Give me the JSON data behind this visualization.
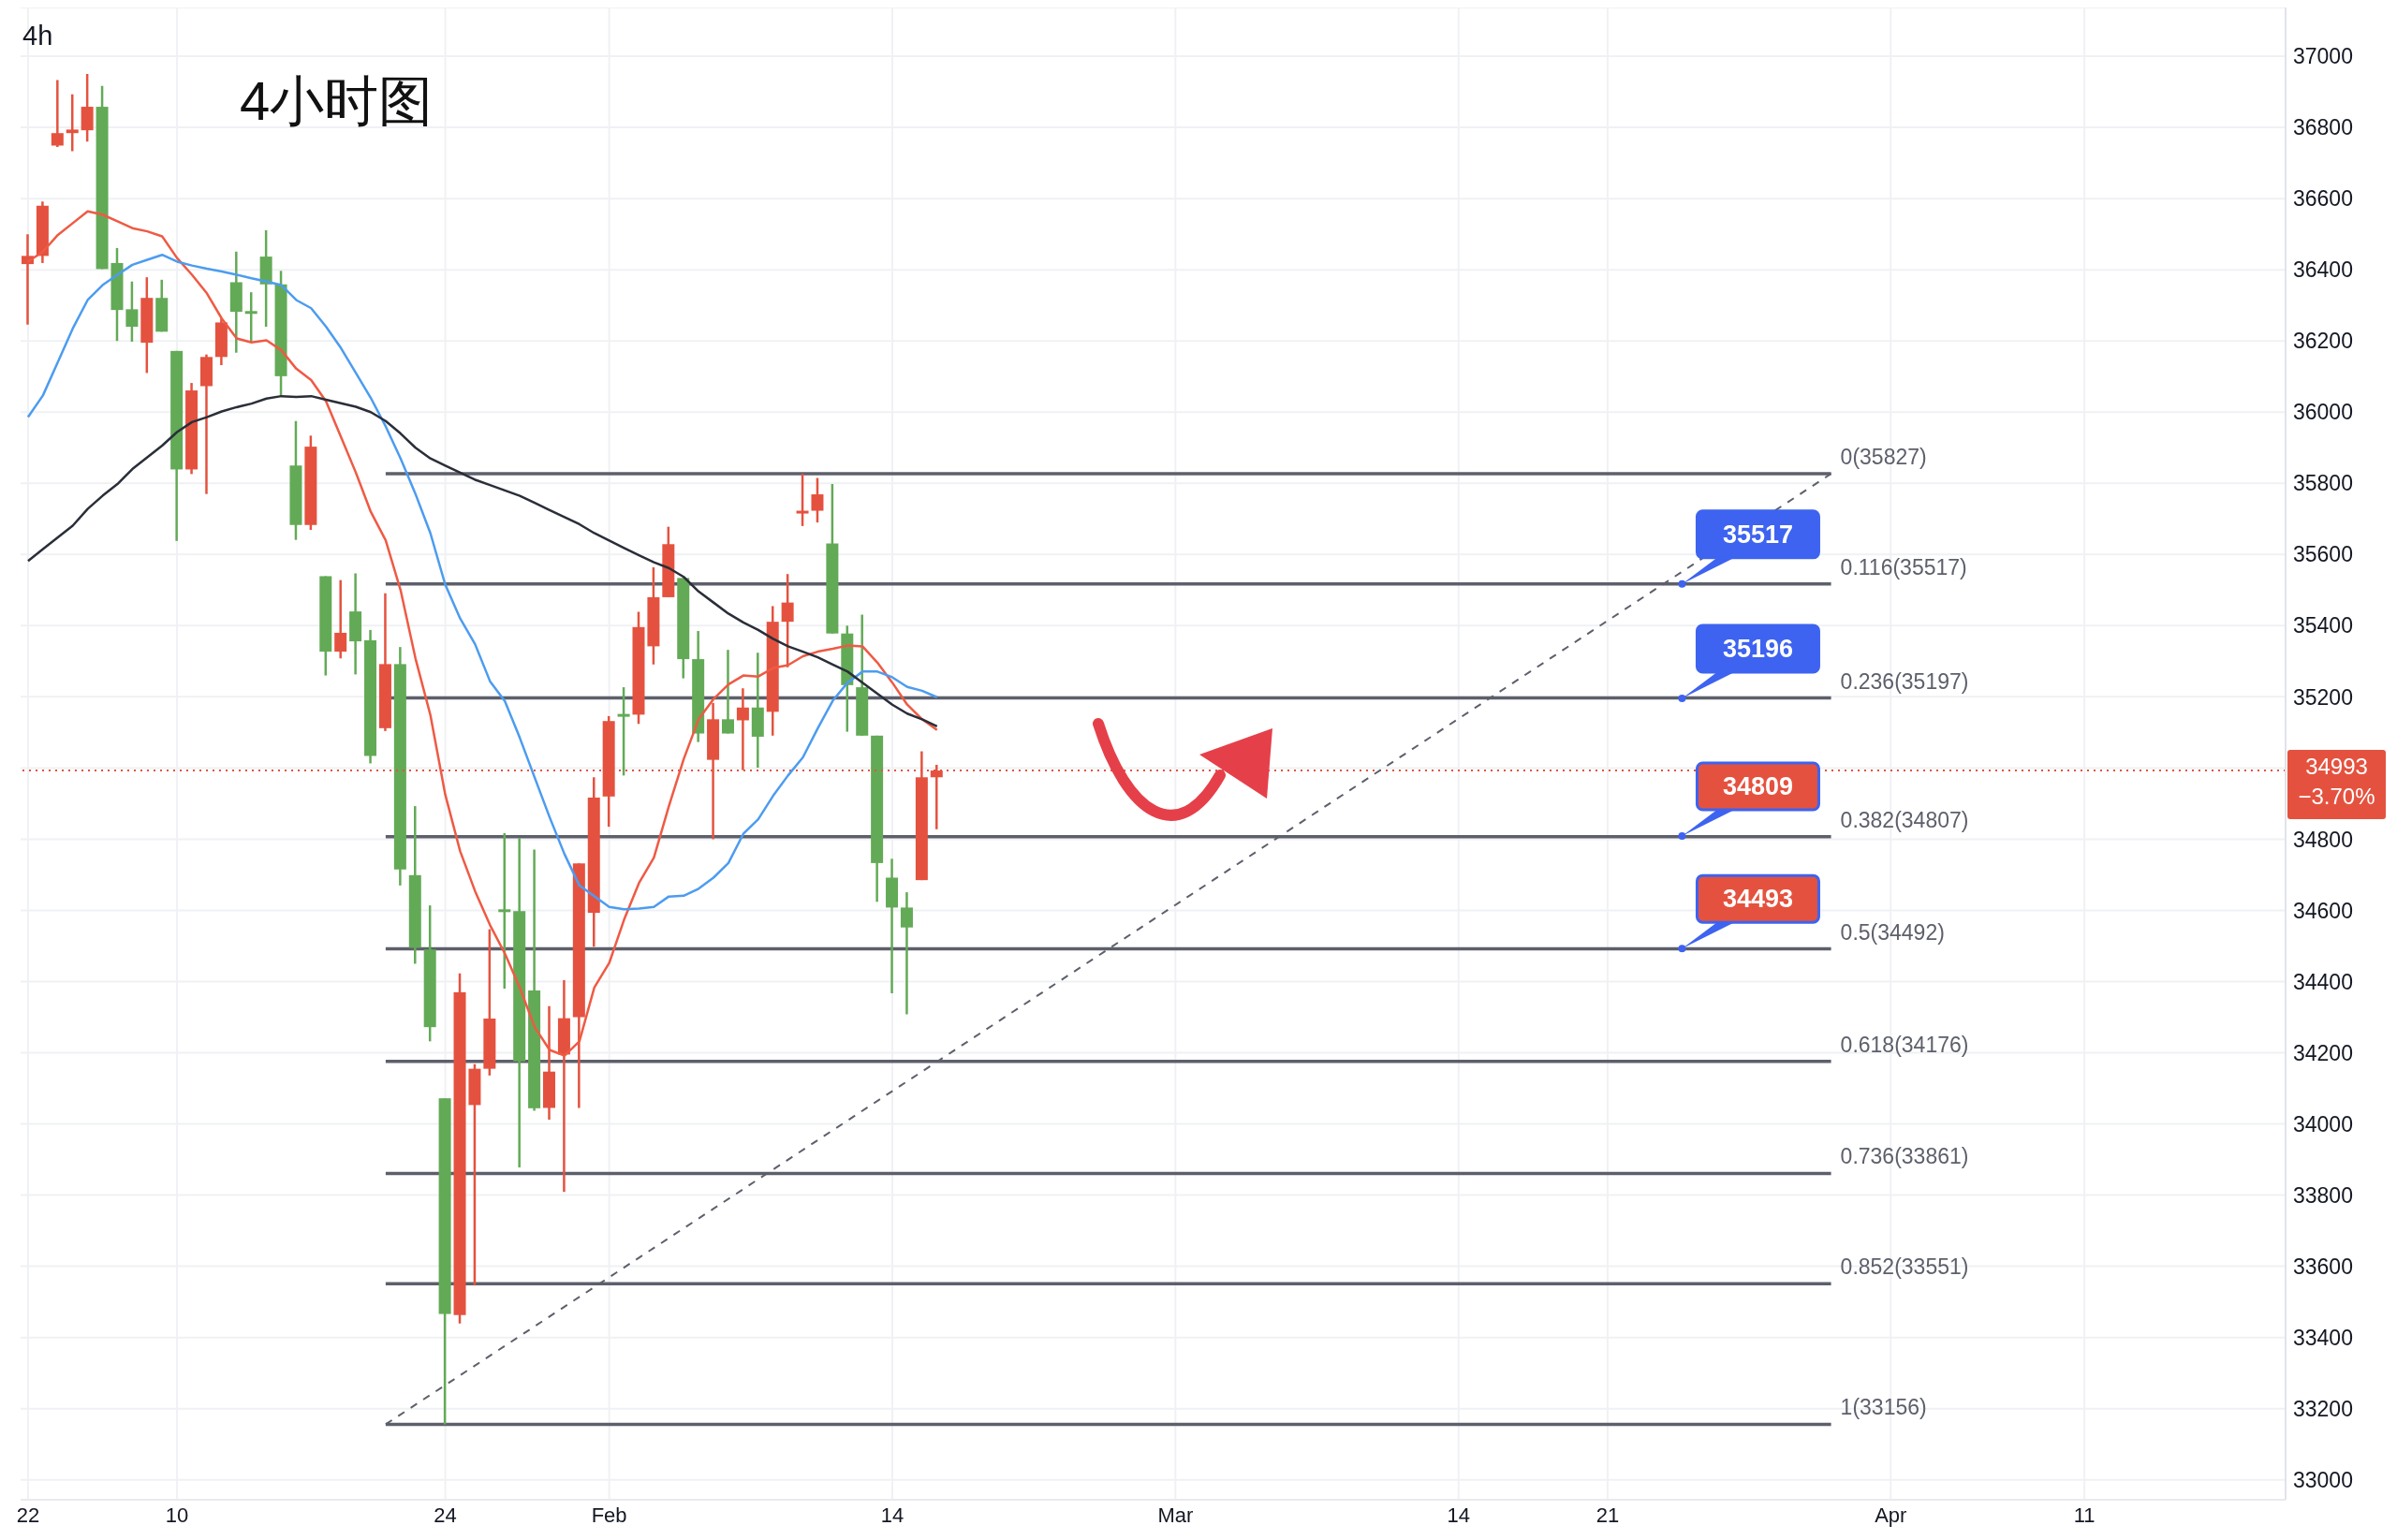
{
  "chart_data": {
    "type": "candlestick",
    "title": "4小时图",
    "subtitle": "4h",
    "categories": [
      "22",
      null,
      null,
      null,
      null,
      null,
      null,
      null,
      null,
      null,
      "10",
      null,
      null,
      null,
      null,
      null,
      null,
      null,
      null,
      null,
      null,
      null,
      null,
      null,
      null,
      null,
      null,
      null,
      "24",
      null,
      null,
      null,
      null,
      null,
      null,
      null,
      null,
      null,
      null,
      "Feb",
      null,
      null,
      null,
      null,
      null,
      null,
      null,
      null,
      null,
      null,
      null,
      null,
      null,
      null,
      null,
      null,
      null,
      null,
      "14",
      null,
      null,
      null,
      null,
      null,
      null,
      null,
      null,
      null,
      null,
      null,
      null,
      null,
      null,
      null,
      null,
      null,
      null,
      "Mar",
      null,
      null,
      null,
      null,
      null,
      null,
      null,
      null,
      null,
      null,
      null,
      null,
      null,
      null,
      null,
      null,
      null,
      null,
      "14",
      null,
      null,
      null,
      null,
      null,
      null,
      null,
      null,
      null,
      "21",
      null,
      null,
      null,
      null,
      null,
      null,
      null,
      null,
      null,
      null,
      null,
      null,
      null,
      null,
      null,
      null,
      null,
      null,
      "Apr",
      null,
      null,
      null,
      null,
      null,
      null,
      null,
      null,
      null,
      null,
      null,
      null,
      "11",
      null,
      null,
      null,
      null,
      null,
      null,
      null,
      null,
      null,
      null,
      null,
      null,
      null
    ],
    "ohlc": [
      [
        36416,
        36500,
        36246,
        36439
      ],
      [
        36439,
        36592,
        36419,
        36580
      ],
      [
        36749,
        36933,
        36745,
        36784
      ],
      [
        36784,
        36893,
        36733,
        36794
      ],
      [
        36792,
        36950,
        36760,
        36858
      ],
      [
        36858,
        36917,
        36402,
        36402
      ],
      [
        36419,
        36461,
        36200,
        36287
      ],
      [
        36289,
        36367,
        36198,
        36240
      ],
      [
        36195,
        36379,
        36110,
        36321
      ],
      [
        36321,
        36372,
        36226,
        36226
      ],
      [
        36172,
        36172,
        35638,
        35839
      ],
      [
        35839,
        36082,
        35826,
        36061
      ],
      [
        36073,
        36162,
        35770,
        36155
      ],
      [
        36155,
        36263,
        36132,
        36252
      ],
      [
        36365,
        36451,
        36167,
        36282
      ],
      [
        36284,
        36337,
        36196,
        36277
      ],
      [
        36437,
        36511,
        36240,
        36359
      ],
      [
        36359,
        36397,
        36045,
        36101
      ],
      [
        35850,
        35975,
        35641,
        35683
      ],
      [
        35683,
        35934,
        35669,
        35903
      ],
      [
        35539,
        35539,
        35260,
        35327
      ],
      [
        35327,
        35528,
        35308,
        35380
      ],
      [
        35440,
        35547,
        35263,
        35356
      ],
      [
        35359,
        35388,
        35013,
        35034
      ],
      [
        35112,
        35491,
        35104,
        35292
      ],
      [
        35292,
        35340,
        34670,
        34715
      ],
      [
        34699,
        34893,
        34450,
        34495
      ],
      [
        34490,
        34614,
        34232,
        34272
      ],
      [
        34072,
        34072,
        33156,
        33466
      ],
      [
        33463,
        34423,
        33439,
        34370
      ],
      [
        34053,
        34168,
        33546,
        34155
      ],
      [
        34155,
        34547,
        34136,
        34296
      ],
      [
        34603,
        34817,
        34380,
        34598
      ],
      [
        34598,
        34803,
        33878,
        34176
      ],
      [
        34375,
        34771,
        34037,
        34044
      ],
      [
        34045,
        34331,
        34012,
        34147
      ],
      [
        34195,
        34404,
        33809,
        34297
      ],
      [
        34300,
        34732,
        34045,
        34732
      ],
      [
        34593,
        34974,
        34498,
        34917
      ],
      [
        34920,
        35146,
        34835,
        35132
      ],
      [
        35152,
        35227,
        34979,
        35148
      ],
      [
        35150,
        35439,
        35124,
        35396
      ],
      [
        35342,
        35564,
        35291,
        35480
      ],
      [
        35480,
        35678,
        35480,
        35629
      ],
      [
        35534,
        35534,
        35252,
        35306
      ],
      [
        35306,
        35385,
        35073,
        35097
      ],
      [
        35023,
        35183,
        34800,
        35137
      ],
      [
        35137,
        35332,
        35097,
        35097
      ],
      [
        35134,
        35224,
        34994,
        35170
      ],
      [
        35170,
        35324,
        35001,
        35088
      ],
      [
        35158,
        35455,
        35091,
        35411
      ],
      [
        35411,
        35545,
        35283,
        35465
      ],
      [
        35719,
        35827,
        35680,
        35723
      ],
      [
        35723,
        35815,
        35690,
        35769
      ],
      [
        35631,
        35798,
        35378,
        35378
      ],
      [
        35378,
        35400,
        35102,
        35233
      ],
      [
        35227,
        35431,
        35091,
        35091
      ],
      [
        35091,
        35091,
        34624,
        34733
      ],
      [
        34692,
        34745,
        34367,
        34608
      ],
      [
        34608,
        34651,
        34308,
        34552
      ],
      [
        34685,
        35047,
        34685,
        34974
      ],
      [
        34974,
        35009,
        34828,
        34993
      ],
      null,
      null,
      null,
      null,
      null,
      null,
      null,
      null,
      null,
      null,
      null,
      null,
      null,
      null,
      null,
      null,
      null,
      null,
      null,
      null,
      null,
      null,
      null,
      null,
      null,
      null,
      null,
      null,
      null,
      null,
      null,
      null,
      null,
      null,
      null,
      null,
      null,
      null,
      null,
      null,
      null,
      null,
      null,
      null,
      null,
      null,
      null,
      null,
      null,
      null,
      null,
      null,
      null,
      null,
      null,
      null,
      null,
      null,
      null,
      null,
      null,
      null,
      null,
      null,
      null,
      null,
      null,
      null,
      null,
      null,
      null,
      null,
      null,
      null,
      null,
      null,
      null,
      null,
      null,
      null,
      null,
      null,
      null,
      null,
      null,
      null,
      null,
      null,
      null,
      null
    ],
    "colors": [
      "#e4523f",
      "#e4523f",
      "#e4523f",
      "#e4523f",
      "#e4523f",
      "#63aa57",
      "#63aa57",
      "#63aa57",
      "#e4523f",
      "#63aa57",
      "#63aa57",
      "#e4523f",
      "#e4523f",
      "#e4523f",
      "#63aa57",
      "#63aa57",
      "#63aa57",
      "#63aa57",
      "#63aa57",
      "#e4523f",
      "#63aa57",
      "#e4523f",
      "#63aa57",
      "#63aa57",
      "#e4523f",
      "#63aa57",
      "#63aa57",
      "#63aa57",
      "#63aa57",
      "#e4523f",
      "#e4523f",
      "#e4523f",
      "#63aa57",
      "#63aa57",
      "#63aa57",
      "#e4523f",
      "#e4523f",
      "#e4523f",
      "#e4523f",
      "#e4523f",
      "#63aa57",
      "#e4523f",
      "#e4523f",
      "#e4523f",
      "#63aa57",
      "#63aa57",
      "#e4523f",
      "#63aa57",
      "#e4523f",
      "#63aa57",
      "#e4523f",
      "#e4523f",
      "#e4523f",
      "#e4523f",
      "#63aa57",
      "#63aa57",
      "#63aa57",
      "#63aa57",
      "#63aa57",
      "#63aa57",
      "#e4523f",
      "#e4523f",
      null,
      null,
      null,
      null,
      null,
      null,
      null,
      null,
      null,
      null,
      null,
      null,
      null,
      null,
      null,
      null,
      null,
      null,
      null,
      null,
      null,
      null,
      null,
      null,
      null,
      null,
      null,
      null,
      null,
      null,
      null,
      null,
      null,
      null,
      null,
      null,
      null,
      null,
      null,
      null,
      null,
      null,
      null,
      null,
      null,
      null,
      null,
      null,
      null,
      null,
      null,
      null,
      null,
      null,
      null,
      null,
      null,
      null,
      null,
      null,
      null,
      null,
      null,
      null,
      null,
      null,
      null,
      null,
      null,
      null,
      null,
      null,
      null,
      null,
      null,
      null,
      null,
      null,
      null,
      null,
      null,
      null,
      null,
      null,
      null,
      null,
      null,
      null,
      null,
      null
    ],
    "series": [
      {
        "type": "line",
        "color": "#ef5a44",
        "values": [
          36423,
          36451,
          36498,
          36531,
          36564,
          36555,
          36536,
          36517,
          36508,
          36494,
          36433,
          36386,
          36334,
          36263,
          36207,
          36196,
          36202,
          36174,
          36122,
          36090,
          36030,
          35930,
          35830,
          35720,
          35640,
          35500,
          35308,
          35149,
          34925,
          34766,
          34654,
          34559,
          34479,
          34383,
          34272,
          34208,
          34192,
          34232,
          34383,
          34452,
          34574,
          34677,
          34748,
          34892,
          35025,
          35137,
          35194,
          35235,
          35260,
          35257,
          35281,
          35289,
          35314,
          35327,
          35335,
          35344,
          35342,
          35296,
          35240,
          35178,
          35137,
          35107,
          null,
          null,
          null,
          null,
          null,
          null,
          null,
          null,
          null,
          null,
          null,
          null,
          null,
          null,
          null,
          null,
          null,
          null,
          null,
          null,
          null,
          null,
          null,
          null,
          null,
          null,
          null,
          null,
          null,
          null,
          null,
          null,
          null,
          null,
          null,
          null,
          null,
          null,
          null,
          null,
          null,
          null,
          null,
          null,
          null,
          null,
          null,
          null,
          null,
          null,
          null,
          null,
          null,
          null,
          null,
          null,
          null,
          null,
          null,
          null,
          null,
          null,
          null,
          null,
          null,
          null,
          null,
          null,
          null,
          null,
          null,
          null,
          null,
          null,
          null,
          null,
          null,
          null,
          null,
          null,
          null,
          null,
          null,
          null,
          null,
          null,
          null,
          null,
          null,
          null
        ]
      },
      {
        "type": "line",
        "color": "#4c9cf0",
        "values": [
          35986,
          36047,
          36141,
          36235,
          36315,
          36357,
          36386,
          36414,
          36428,
          36442,
          36423,
          36412,
          36403,
          36395,
          36386,
          36376,
          36367,
          36357,
          36315,
          36292,
          36240,
          36180,
          36110,
          36040,
          35960,
          35870,
          35770,
          35660,
          35515,
          35420,
          35348,
          35244,
          35188,
          35085,
          34973,
          34862,
          34758,
          34670,
          34640,
          34610,
          34603,
          34605,
          34610,
          34639,
          34641,
          34661,
          34692,
          34733,
          34815,
          34856,
          34922,
          34979,
          35030,
          35112,
          35189,
          35240,
          35271,
          35271,
          35255,
          35228,
          35217,
          35199,
          null,
          null,
          null,
          null,
          null,
          null,
          null,
          null,
          null,
          null,
          null,
          null,
          null,
          null,
          null,
          null,
          null,
          null,
          null,
          null,
          null,
          null,
          null,
          null,
          null,
          null,
          null,
          null,
          null,
          null,
          null,
          null,
          null,
          null,
          null,
          null,
          null,
          null,
          null,
          null,
          null,
          null,
          null,
          null,
          null,
          null,
          null,
          null,
          null,
          null,
          null,
          null,
          null,
          null,
          null,
          null,
          null,
          null,
          null,
          null,
          null,
          null,
          null,
          null,
          null,
          null,
          null,
          null,
          null,
          null,
          null,
          null,
          null,
          null,
          null,
          null,
          null,
          null,
          null,
          null,
          null,
          null,
          null,
          null,
          null,
          null,
          null,
          null,
          null,
          null
        ]
      },
      {
        "type": "line",
        "color": "#2a2e39",
        "values": [
          35582,
          35615,
          35648,
          35681,
          35728,
          35765,
          35798,
          35840,
          35873,
          35906,
          35944,
          35972,
          35986,
          36002,
          36014,
          36024,
          36038,
          36045,
          36043,
          36045,
          36035,
          36025,
          36015,
          36000,
          35975,
          35940,
          35900,
          35870,
          35850,
          35830,
          35810,
          35795,
          35780,
          35765,
          35745,
          35725,
          35705,
          35685,
          35660,
          35639,
          35618,
          35598,
          35578,
          35562,
          35537,
          35496,
          35465,
          35434,
          35409,
          35388,
          35363,
          35342,
          35327,
          35311,
          35291,
          35271,
          35240,
          35209,
          35178,
          35153,
          35137,
          35117,
          null,
          null,
          null,
          null,
          null,
          null,
          null,
          null,
          null,
          null,
          null,
          null,
          null,
          null,
          null,
          null,
          null,
          null,
          null,
          null,
          null,
          null,
          null,
          null,
          null,
          null,
          null,
          null,
          null,
          null,
          null,
          null,
          null,
          null,
          null,
          null,
          null,
          null,
          null,
          null,
          null,
          null,
          null,
          null,
          null,
          null,
          null,
          null,
          null,
          null,
          null,
          null,
          null,
          null,
          null,
          null,
          null,
          null,
          null,
          null,
          null,
          null,
          null,
          null,
          null,
          null,
          null,
          null,
          null,
          null,
          null,
          null,
          null,
          null,
          null,
          null,
          null,
          null,
          null,
          null,
          null,
          null,
          null,
          null,
          null,
          null,
          null,
          null,
          null,
          null
        ]
      },
      {
        "type": "line",
        "color": "#5d606b",
        "line_style": "dashed",
        "values": [
          null,
          null,
          null,
          null,
          null,
          null,
          null,
          null,
          null,
          null,
          null,
          null,
          null,
          null,
          null,
          null,
          null,
          null,
          null,
          null,
          null,
          null,
          null,
          null,
          33156,
          null,
          null,
          null,
          null,
          null,
          null,
          null,
          null,
          null,
          null,
          null,
          null,
          null,
          null,
          null,
          null,
          null,
          null,
          null,
          null,
          null,
          null,
          null,
          null,
          null,
          null,
          null,
          null,
          null,
          null,
          null,
          null,
          null,
          null,
          null,
          null,
          null,
          null,
          null,
          null,
          null,
          null,
          null,
          null,
          null,
          null,
          null,
          null,
          null,
          null,
          null,
          null,
          null,
          null,
          null,
          null,
          null,
          null,
          null,
          null,
          null,
          null,
          null,
          null,
          null,
          null,
          null,
          null,
          null,
          null,
          null,
          null,
          null,
          null,
          null,
          null,
          null,
          null,
          null,
          null,
          null,
          null,
          null,
          null,
          null,
          null,
          null,
          null,
          null,
          null,
          null,
          null,
          null,
          null,
          null,
          null,
          35827,
          null,
          null,
          null,
          null,
          null,
          null,
          null,
          null,
          null,
          null,
          null,
          null,
          null,
          null,
          null,
          null,
          null,
          null,
          null,
          null,
          null,
          null,
          null,
          null,
          null,
          null,
          null,
          null,
          null,
          null
        ]
      }
    ],
    "ylim": [
      32944,
      37137
    ],
    "yticks": [
      33000,
      33200,
      33400,
      33600,
      33800,
      34000,
      34200,
      34400,
      34600,
      34800,
      {
        "value": 35000,
        "label": null
      },
      35200,
      35400,
      35600,
      35800,
      36000,
      36200,
      36400,
      36600,
      36800,
      37000
    ],
    "grid": true,
    "ref_lines": [
      {
        "axis": "y",
        "value": 35827,
        "label": "0(35827)",
        "color": "#5d606b"
      },
      {
        "axis": "y",
        "value": 35517,
        "label": "0.116(35517)",
        "color": "#5d606b"
      },
      {
        "axis": "y",
        "value": 35197,
        "label": "0.236(35197)",
        "color": "#5d606b"
      },
      {
        "axis": "y",
        "value": 34807,
        "label": "0.382(34807)",
        "color": "#5d606b"
      },
      {
        "axis": "y",
        "value": 34492,
        "label": "0.5(34492)",
        "color": "#5d606b"
      },
      {
        "axis": "y",
        "value": 34176,
        "label": "0.618(34176)",
        "color": "#5d606b"
      },
      {
        "axis": "y",
        "value": 33861,
        "label": "0.736(33861)",
        "color": "#5d606b"
      },
      {
        "axis": "y",
        "value": 33551,
        "label": "0.852(33551)",
        "color": "#5d606b"
      },
      {
        "axis": "y",
        "value": 33156,
        "label": "1(33156)",
        "color": "#5d606b"
      },
      {
        "axis": "y",
        "value": 34993,
        "label": "34993 −3.70%",
        "color": "#e4523f",
        "line_style": "dotted"
      }
    ],
    "annotations": [
      {
        "text": "35517",
        "y": 35517
      },
      {
        "text": "35196",
        "y": 35196
      },
      {
        "text": "34809",
        "y": 34809
      },
      {
        "text": "34493",
        "y": 34493
      }
    ]
  }
}
